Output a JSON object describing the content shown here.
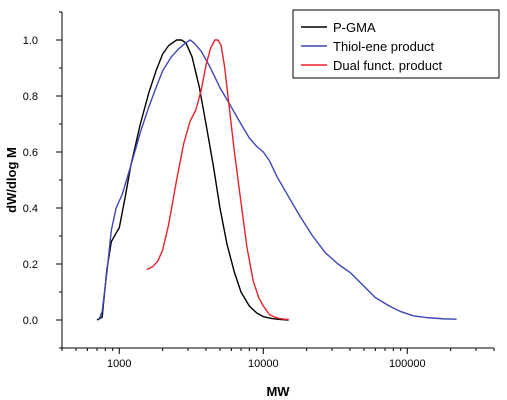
{
  "chart_data": {
    "type": "line",
    "xlabel": "MW",
    "ylabel": "dW/dlog M",
    "x_scale": "log",
    "xlim": [
      400,
      400000
    ],
    "ylim": [
      -0.1,
      1.1
    ],
    "x_ticks": [
      1000,
      10000,
      100000
    ],
    "x_tick_labels": [
      "1000",
      "10000",
      "100000"
    ],
    "y_ticks": [
      0.0,
      0.2,
      0.4,
      0.6,
      0.8,
      1.0
    ],
    "y_tick_labels": [
      "0.0",
      "0.2",
      "0.4",
      "0.6",
      "0.8",
      "1.0"
    ],
    "legend_position": "top-right",
    "grid": false,
    "series": [
      {
        "name": "P-GMA",
        "color": "#000000",
        "x": [
          700,
          760,
          820,
          880,
          950,
          1000,
          1100,
          1200,
          1400,
          1600,
          1800,
          2000,
          2200,
          2500,
          2700,
          2900,
          3200,
          3600,
          4000,
          4500,
          5000,
          5600,
          6300,
          7000,
          8000,
          9000,
          10000,
          11500,
          13000,
          15000
        ],
        "y": [
          0.0,
          0.01,
          0.18,
          0.28,
          0.31,
          0.33,
          0.44,
          0.55,
          0.7,
          0.81,
          0.89,
          0.95,
          0.98,
          1.0,
          1.0,
          0.99,
          0.94,
          0.83,
          0.7,
          0.55,
          0.4,
          0.27,
          0.17,
          0.1,
          0.05,
          0.025,
          0.012,
          0.005,
          0.002,
          0.0
        ]
      },
      {
        "name": "Thiol-ene product",
        "color": "#3c48b4",
        "x": [
          720,
          760,
          820,
          880,
          950,
          1050,
          1200,
          1400,
          1600,
          1800,
          2000,
          2300,
          2600,
          2900,
          3100,
          3300,
          3700,
          4200,
          5000,
          6000,
          7000,
          8000,
          9000,
          10000,
          11000,
          12500,
          15000,
          18000,
          22000,
          27000,
          33000,
          40000,
          48000,
          60000,
          75000,
          90000,
          110000,
          140000,
          180000,
          220000
        ],
        "y": [
          0.0,
          0.03,
          0.17,
          0.32,
          0.4,
          0.45,
          0.55,
          0.67,
          0.76,
          0.83,
          0.89,
          0.94,
          0.97,
          0.99,
          1.0,
          0.99,
          0.96,
          0.91,
          0.83,
          0.76,
          0.7,
          0.65,
          0.62,
          0.6,
          0.57,
          0.51,
          0.44,
          0.37,
          0.3,
          0.24,
          0.2,
          0.17,
          0.13,
          0.08,
          0.05,
          0.03,
          0.015,
          0.008,
          0.004,
          0.003
        ]
      },
      {
        "name": "Dual funct. product",
        "color": "#e8232a",
        "x": [
          1550,
          1700,
          1850,
          2000,
          2200,
          2500,
          2800,
          3100,
          3400,
          3700,
          4000,
          4300,
          4600,
          4850,
          5100,
          5400,
          5800,
          6300,
          7000,
          7700,
          8500,
          9300,
          10000,
          11000,
          12000,
          13000,
          14000,
          15000
        ],
        "y": [
          0.18,
          0.19,
          0.21,
          0.25,
          0.34,
          0.5,
          0.63,
          0.71,
          0.75,
          0.82,
          0.91,
          0.97,
          1.0,
          1.0,
          0.98,
          0.9,
          0.76,
          0.6,
          0.42,
          0.26,
          0.14,
          0.08,
          0.05,
          0.02,
          0.01,
          0.005,
          0.003,
          0.002
        ]
      }
    ]
  }
}
